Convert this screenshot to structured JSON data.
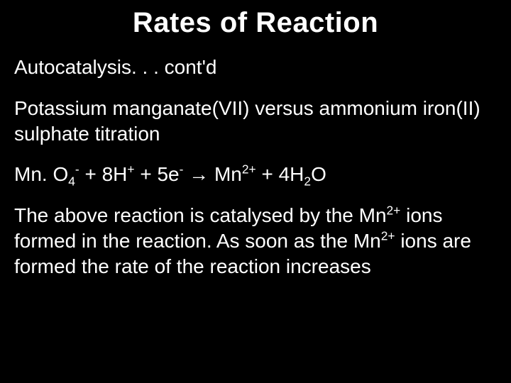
{
  "background_color": "#000000",
  "text_color": "#ffffff",
  "font_family": "Comic Sans MS",
  "title": "Rates of Reaction",
  "subtitle": "Autocatalysis. . . cont'd",
  "description": "Potassium manganate(VII) versus ammonium iron(II) sulphate titration",
  "equation": {
    "lhs_species1_base": "Mn. O",
    "lhs_species1_sub": "4",
    "lhs_species1_sup": "-",
    "plus1": " + ",
    "lhs_species2_coeff": "8",
    "lhs_species2_base": "H",
    "lhs_species2_sup": "+",
    "plus2": " + ",
    "lhs_species3_coeff": "5",
    "lhs_species3_base": "e",
    "lhs_species3_sup": "-",
    "arrow": " → ",
    "rhs_species1_base": "Mn",
    "rhs_species1_sup": "2+",
    "plus3": " + ",
    "rhs_species2_coeff": "4",
    "rhs_species2_base": "H",
    "rhs_species2_sub": "2",
    "rhs_species2_tail": "O"
  },
  "explanation": {
    "part1": "The above reaction is catalysed by the ",
    "cat_base": "Mn",
    "cat_sup": "2+",
    "part2": " ions formed in the reaction.  As soon as the ",
    "cat2_base": "Mn",
    "cat2_sup": "2+",
    "part3": " ions are formed the rate of the reaction increases"
  },
  "title_fontsize": 40,
  "body_fontsize": 28
}
